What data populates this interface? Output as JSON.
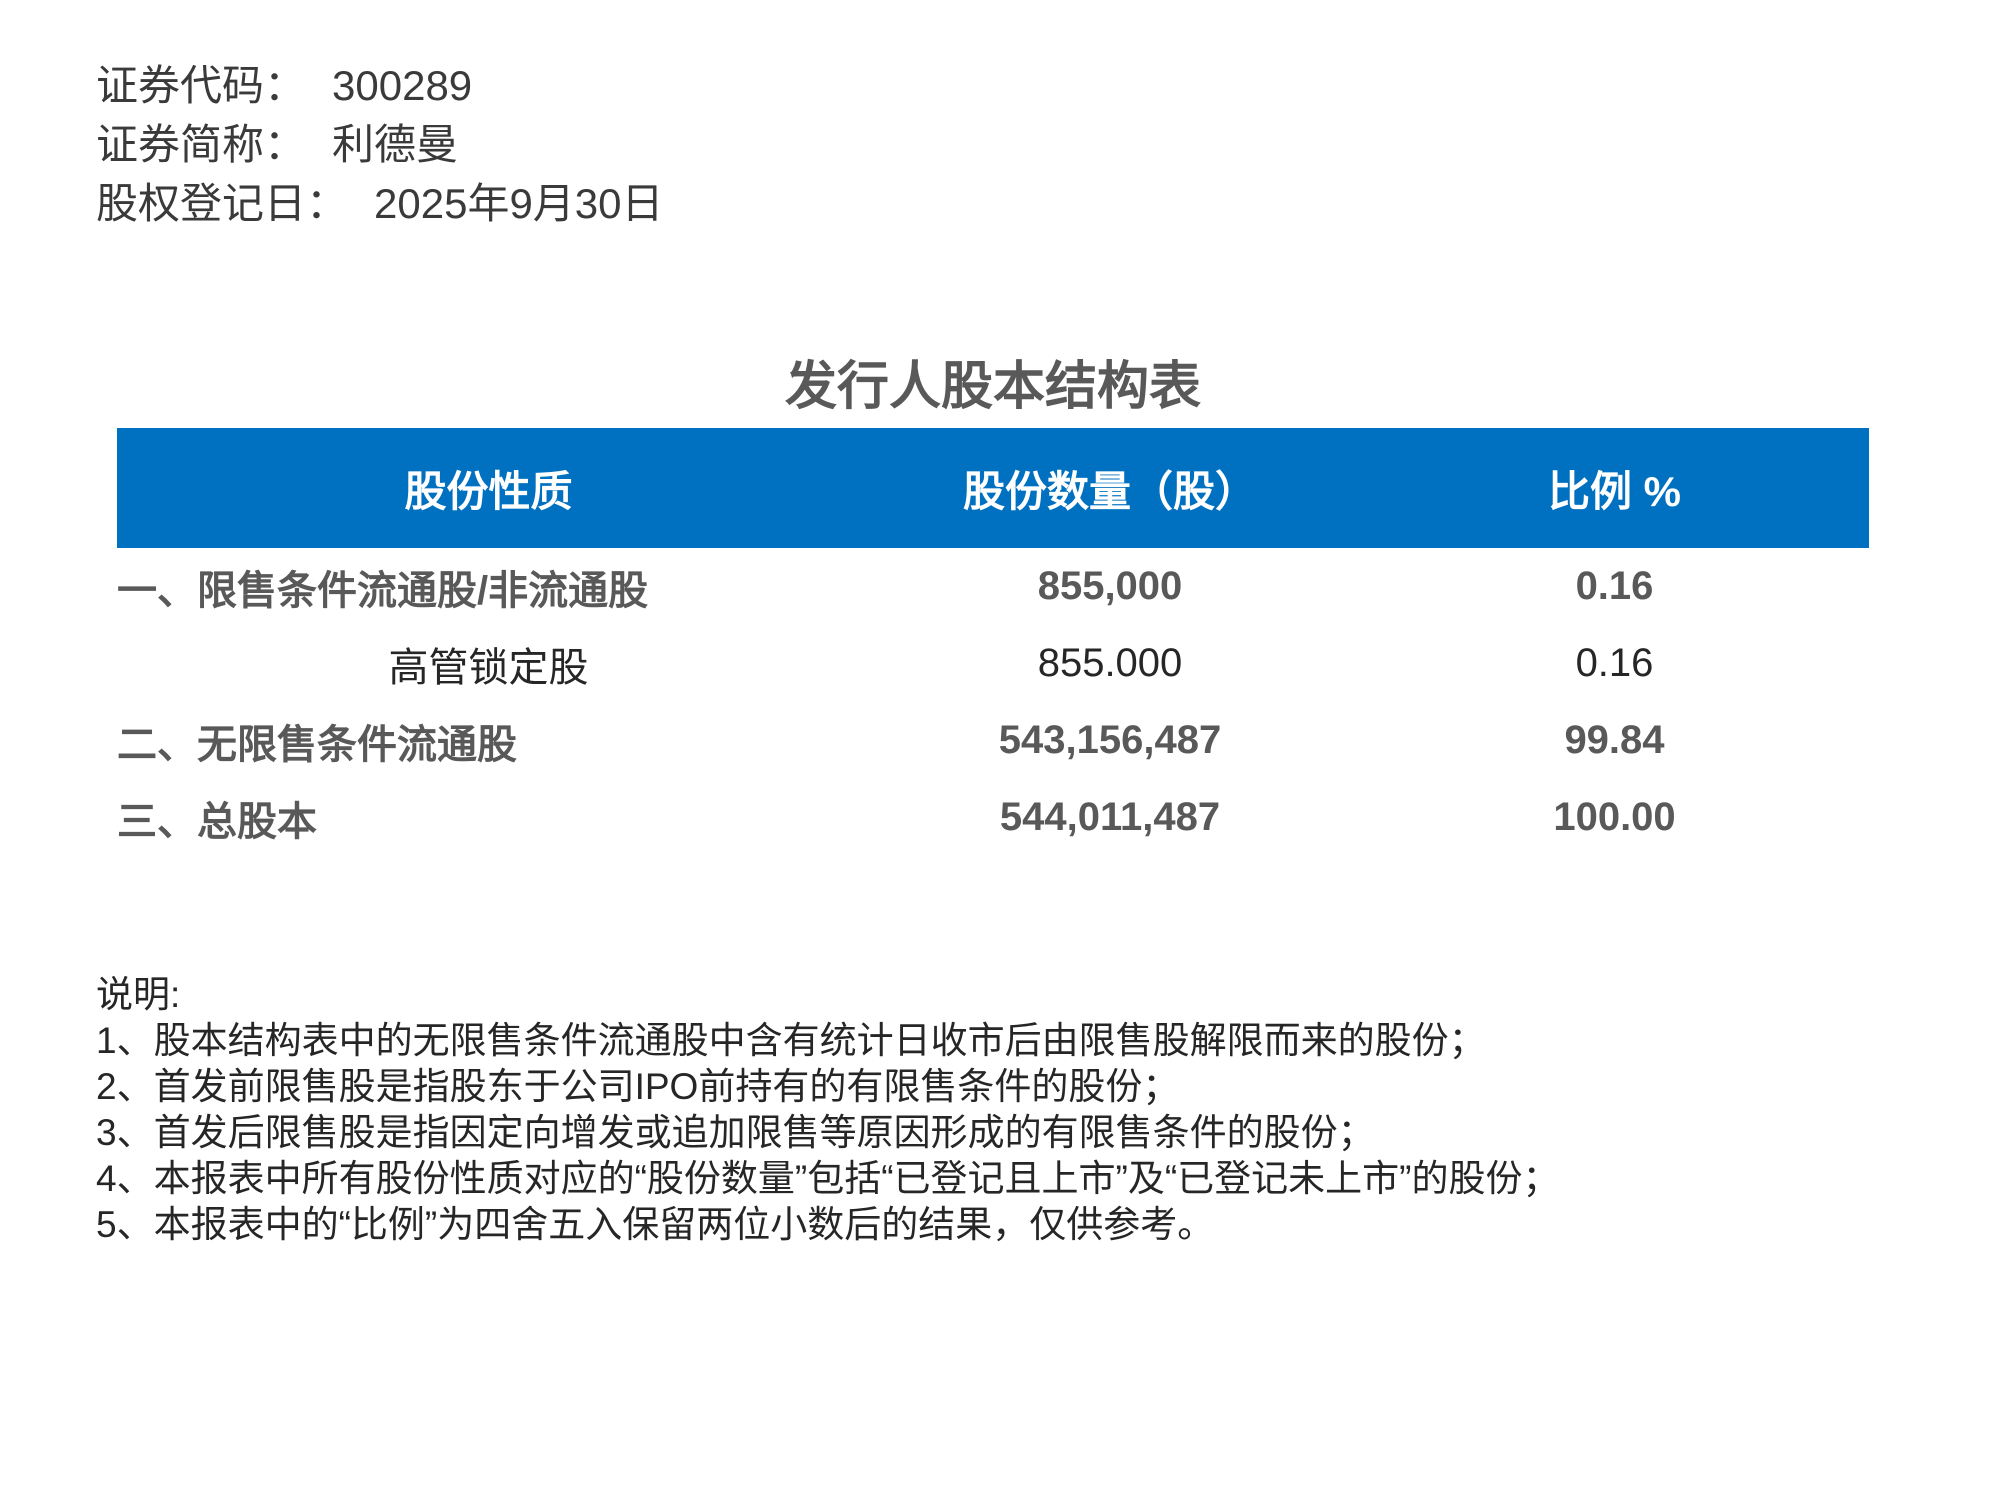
{
  "page": {
    "background": "#ffffff",
    "accent_blue": "#0070C0",
    "bold_text_color": "#595959",
    "regular_text_color": "#262626"
  },
  "header_info": {
    "items": [
      {
        "label": "证券代码：",
        "value": "300289"
      },
      {
        "label": "证券简称：",
        "value": "利德曼"
      },
      {
        "label": "股权登记日：",
        "value": "2025年9月30日"
      }
    ]
  },
  "table": {
    "title": "发行人股本结构表",
    "header_bg": "#0070C0",
    "columns": [
      "股份性质",
      "股份数量（股）",
      "比例 %"
    ],
    "rows": [
      {
        "name": "一、限售条件流通股/非流通股",
        "shares": "855,000",
        "ratio": "0.16"
      },
      {
        "name": "高管锁定股",
        "shares": "855.000",
        "ratio": "0.16"
      },
      {
        "name": "二、无限售条件流通股",
        "shares": "543,156,487",
        "ratio": "99.84"
      },
      {
        "name": "三、总股本",
        "shares": "544,011,487",
        "ratio": "100.00"
      }
    ]
  },
  "notes": {
    "heading": "说明:",
    "items": [
      "1、股本结构表中的无限售条件流通股中含有统计日收市后由限售股解限而来的股份；",
      "2、首发前限售股是指股东于公司IPO前持有的有限售条件的股份；",
      "3、首发后限售股是指因定向增发或追加限售等原因形成的有限售条件的股份；",
      "4、本报表中所有股份性质对应的“股份数量”包括“已登记且上市”及“已登记未上市”的股份；",
      "5、本报表中的“比例”为四舍五入保留两位小数后的结果，仅供参考。"
    ]
  }
}
